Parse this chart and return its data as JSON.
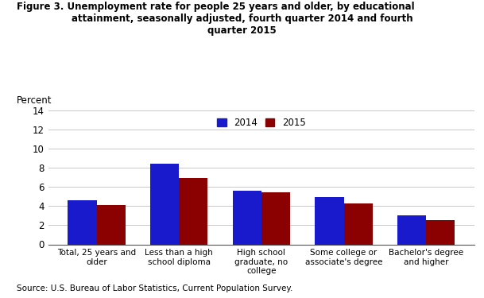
{
  "title_line1": "Figure 3. Unemployment rate for people 25 years and older, by educational",
  "title_line2": "attainment, seasonally adjusted, fourth quarter 2014 and fourth",
  "title_line3": "quarter 2015",
  "ylabel": "Percent",
  "categories": [
    "Total, 25 years and\nolder",
    "Less than a high\nschool diploma",
    "High school\ngraduate, no\ncollege",
    "Some college or\nassociate's degree",
    "Bachelor's degree\nand higher"
  ],
  "values_2014": [
    4.6,
    8.4,
    5.6,
    4.9,
    3.0
  ],
  "values_2015": [
    4.1,
    6.9,
    5.4,
    4.3,
    2.5
  ],
  "color_2014": "#1a1acd",
  "color_2015": "#8B0000",
  "ylim": [
    0,
    14
  ],
  "yticks": [
    0,
    2,
    4,
    6,
    8,
    10,
    12,
    14
  ],
  "legend_labels": [
    "2014",
    "2015"
  ],
  "source_text": "Source: U.S. Bureau of Labor Statistics, Current Population Survey.",
  "bar_width": 0.35,
  "background_color": "#ffffff"
}
